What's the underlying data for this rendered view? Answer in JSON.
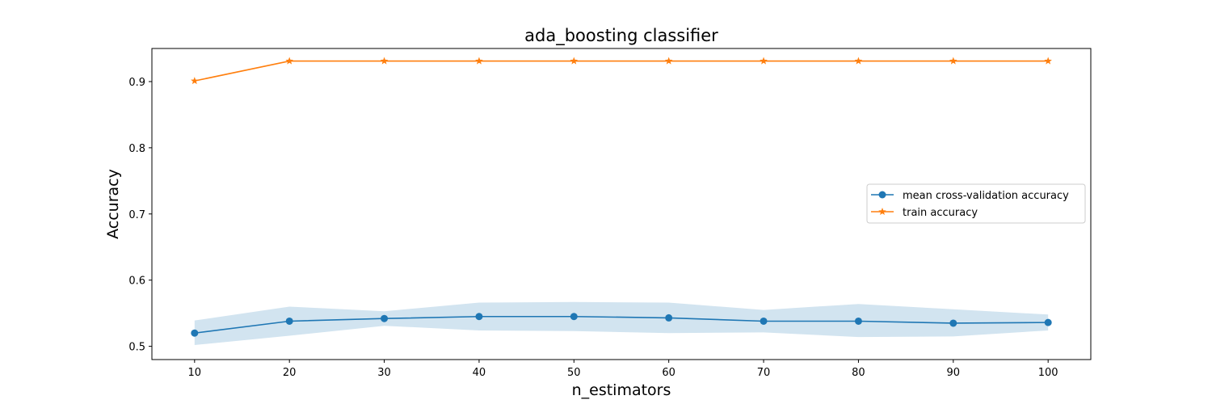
{
  "chart_data": {
    "type": "line",
    "title": "ada_boosting classifier",
    "xlabel": "n_estimators",
    "ylabel": "Accuracy",
    "x": [
      10,
      20,
      30,
      40,
      50,
      60,
      70,
      80,
      90,
      100
    ],
    "xticks": [
      "10",
      "20",
      "30",
      "40",
      "50",
      "60",
      "70",
      "80",
      "90",
      "100"
    ],
    "yticks": [
      "0.5",
      "0.6",
      "0.7",
      "0.8",
      "0.9"
    ],
    "xlim": [
      5.5,
      104.5
    ],
    "ylim": [
      0.48,
      0.95
    ],
    "grid": false,
    "legend_position": "center-right",
    "series": [
      {
        "name": "mean cross-validation accuracy",
        "color": "#1f77b4",
        "marker": "circle",
        "values": [
          0.52,
          0.538,
          0.542,
          0.545,
          0.545,
          0.543,
          0.538,
          0.538,
          0.535,
          0.536
        ],
        "band_upper": [
          0.539,
          0.56,
          0.553,
          0.566,
          0.567,
          0.566,
          0.555,
          0.564,
          0.556,
          0.548
        ],
        "band_lower": [
          0.502,
          0.516,
          0.531,
          0.524,
          0.523,
          0.52,
          0.521,
          0.514,
          0.515,
          0.524
        ]
      },
      {
        "name": "train accuracy",
        "color": "#ff7f0e",
        "marker": "star",
        "values": [
          0.901,
          0.931,
          0.931,
          0.931,
          0.931,
          0.931,
          0.931,
          0.931,
          0.931,
          0.931
        ]
      }
    ]
  }
}
